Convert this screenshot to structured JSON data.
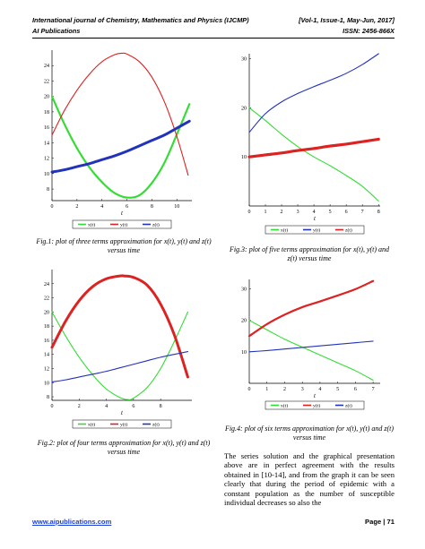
{
  "header": {
    "journal": "International journal of Chemistry, Mathematics and Physics (IJCMP)",
    "publisher": "AI Publications",
    "volume": "[Vol-1, Issue-1, May-Jun, 2017]",
    "issn": "ISSN: 2456-866X"
  },
  "captions": {
    "fig1": "Fig.1: plot of three terms approximation for x(t), y(t) and z(t) versus time",
    "fig2": "Fig.2: plot of four terms approximation for x(t), y(t) and z(t) versus time",
    "fig3": "Fig.3: plot of five terms approximation for x(t), y(t) and z(t) versus time",
    "fig4": "Fig.4: plot of six terms approximation for x(t), y(t) and z(t) versus time"
  },
  "body_text": "The series solution and the graphical presentation above are in perfect agreement with the results obtained in [10-14], and from the graph it can be seen clearly that during the period of epidemic with a constant population as the number of susceptible individual decreases so also the",
  "footer": {
    "link": "www.aipublications.com",
    "page": "Page | 71"
  },
  "colors": {
    "x": "#33dd33",
    "y": "#dd2222",
    "z": "#2233bb",
    "link": "#1a3fd8"
  },
  "chart_data": [
    {
      "type": "line",
      "figure": "fig1",
      "xlabel": "t",
      "xlim": [
        0,
        11.2
      ],
      "ylim": [
        6.5,
        26
      ],
      "xticks": [
        0,
        2,
        4,
        6,
        8,
        10
      ],
      "yticks": [
        8,
        10,
        12,
        14,
        16,
        18,
        20,
        22,
        24
      ],
      "legend": [
        "x(t)",
        "y(t)",
        "z(t)"
      ],
      "legend_position": "bottom",
      "series": [
        {
          "name": "x(t)",
          "color": "#33dd33",
          "width": 2.2,
          "style": "marker",
          "x": [
            0,
            1,
            2,
            3,
            4,
            5,
            6,
            7,
            8,
            9,
            10,
            11
          ],
          "y": [
            20,
            16.4,
            13.3,
            10.8,
            8.9,
            7.5,
            6.9,
            7.2,
            8.8,
            11.4,
            15.1,
            19
          ]
        },
        {
          "name": "y(t)",
          "color": "#dd2222",
          "width": 1.1,
          "style": "line",
          "x": [
            0,
            1,
            2,
            3,
            4,
            5,
            5.6,
            6,
            7,
            8,
            9,
            10,
            10.9
          ],
          "y": [
            15,
            18.2,
            20.8,
            22.9,
            24.5,
            25.4,
            25.6,
            25.5,
            24.5,
            22.5,
            19.3,
            14.8,
            9.8
          ]
        },
        {
          "name": "z(t)",
          "color": "#2233bb",
          "width": 3,
          "style": "line",
          "x": [
            0,
            1,
            2,
            3,
            4,
            5,
            6,
            7,
            8,
            9,
            10,
            11
          ],
          "y": [
            10.2,
            10.5,
            10.9,
            11.3,
            11.8,
            12.3,
            12.9,
            13.6,
            14.3,
            15,
            15.9,
            16.8
          ]
        }
      ]
    },
    {
      "type": "line",
      "figure": "fig2",
      "xlabel": "t",
      "xlim": [
        0,
        10.3
      ],
      "ylim": [
        7.5,
        26
      ],
      "xticks": [
        0,
        2,
        4,
        6,
        8
      ],
      "yticks": [
        8,
        10,
        12,
        14,
        16,
        18,
        20,
        22,
        24
      ],
      "legend": [
        "x(t)",
        "y(t)",
        "z(t)"
      ],
      "legend_position": "bottom",
      "series": [
        {
          "name": "x(t)",
          "color": "#33dd33",
          "width": 1.1,
          "style": "line",
          "x": [
            0,
            1,
            2,
            3,
            4,
            5,
            5.6,
            6,
            7,
            8,
            9,
            10
          ],
          "y": [
            20,
            16.6,
            13.6,
            11.1,
            9.1,
            7.9,
            7.6,
            7.8,
            9.3,
            12,
            15.8,
            20
          ]
        },
        {
          "name": "y(t)",
          "color": "#dd2222",
          "width": 3,
          "style": "line-marker",
          "x": [
            0,
            1,
            2,
            3,
            4,
            5,
            5.3,
            6,
            7,
            8,
            9,
            10
          ],
          "y": [
            15,
            18.7,
            21.6,
            23.6,
            24.7,
            25.1,
            25.1,
            24.9,
            23.8,
            21.1,
            16.8,
            10.8
          ]
        },
        {
          "name": "z(t)",
          "color": "#2233bb",
          "width": 1.1,
          "style": "line",
          "x": [
            0,
            1,
            2,
            3,
            4,
            5,
            6,
            7,
            8,
            9,
            10
          ],
          "y": [
            10.1,
            10.4,
            10.8,
            11.2,
            11.6,
            12.1,
            12.6,
            13.1,
            13.6,
            14,
            14.4
          ]
        }
      ]
    },
    {
      "type": "line",
      "figure": "fig3",
      "xlabel": "t",
      "xlim": [
        0,
        8.1
      ],
      "ylim": [
        0,
        31
      ],
      "xticks": [
        0,
        1,
        2,
        3,
        4,
        5,
        6,
        7,
        8
      ],
      "yticks": [
        10,
        20,
        30
      ],
      "legend": [
        "x(t)",
        "y(t)",
        "z(t)"
      ],
      "legend_position": "bottom",
      "series": [
        {
          "name": "x(t)",
          "color": "#33dd33",
          "width": 1.1,
          "style": "line",
          "x": [
            0,
            1,
            2,
            3,
            4,
            5,
            6,
            7,
            8
          ],
          "y": [
            20,
            17.4,
            14.6,
            12.1,
            10,
            8.2,
            6.2,
            4,
            1
          ]
        },
        {
          "name": "y(t)",
          "color": "#2233bb",
          "width": 1.1,
          "style": "line",
          "x": [
            0,
            1,
            2,
            3,
            4,
            5,
            6,
            7,
            8
          ],
          "y": [
            15,
            18.8,
            21.2,
            22.9,
            24.3,
            25.6,
            27,
            28.8,
            31
          ]
        },
        {
          "name": "z(t)",
          "color": "#dd2222",
          "width": 3.2,
          "style": "line",
          "x": [
            0,
            1,
            2,
            3,
            4,
            5,
            6,
            7,
            8
          ],
          "y": [
            10,
            10.4,
            10.8,
            11.3,
            11.7,
            12.2,
            12.6,
            13.1,
            13.6
          ]
        }
      ]
    },
    {
      "type": "line",
      "figure": "fig4",
      "xlabel": "t",
      "xlim": [
        0,
        7.4
      ],
      "ylim": [
        0,
        33
      ],
      "xticks": [
        0,
        1,
        2,
        3,
        4,
        5,
        6,
        7
      ],
      "yticks": [
        10,
        20,
        30
      ],
      "legend": [
        "x(t)",
        "y(t)",
        "z(t)"
      ],
      "legend_position": "bottom",
      "series": [
        {
          "name": "x(t)",
          "color": "#33dd33",
          "width": 1.1,
          "style": "line",
          "x": [
            0,
            1,
            2,
            3,
            4,
            5,
            6,
            7
          ],
          "y": [
            20,
            17,
            14,
            11.5,
            9,
            6.5,
            4,
            1
          ]
        },
        {
          "name": "y(t)",
          "color": "#dd2222",
          "width": 2.2,
          "style": "line",
          "x": [
            0,
            1,
            2,
            3,
            4,
            5,
            6,
            7
          ],
          "y": [
            15,
            18.8,
            21.8,
            24.2,
            26,
            27.9,
            29.9,
            32.5
          ]
        },
        {
          "name": "z(t)",
          "color": "#2233bb",
          "width": 1.1,
          "style": "line",
          "x": [
            0,
            1,
            2,
            3,
            4,
            5,
            6,
            7
          ],
          "y": [
            10,
            10.4,
            10.9,
            11.4,
            11.9,
            12.4,
            12.9,
            13.4
          ]
        }
      ]
    }
  ]
}
